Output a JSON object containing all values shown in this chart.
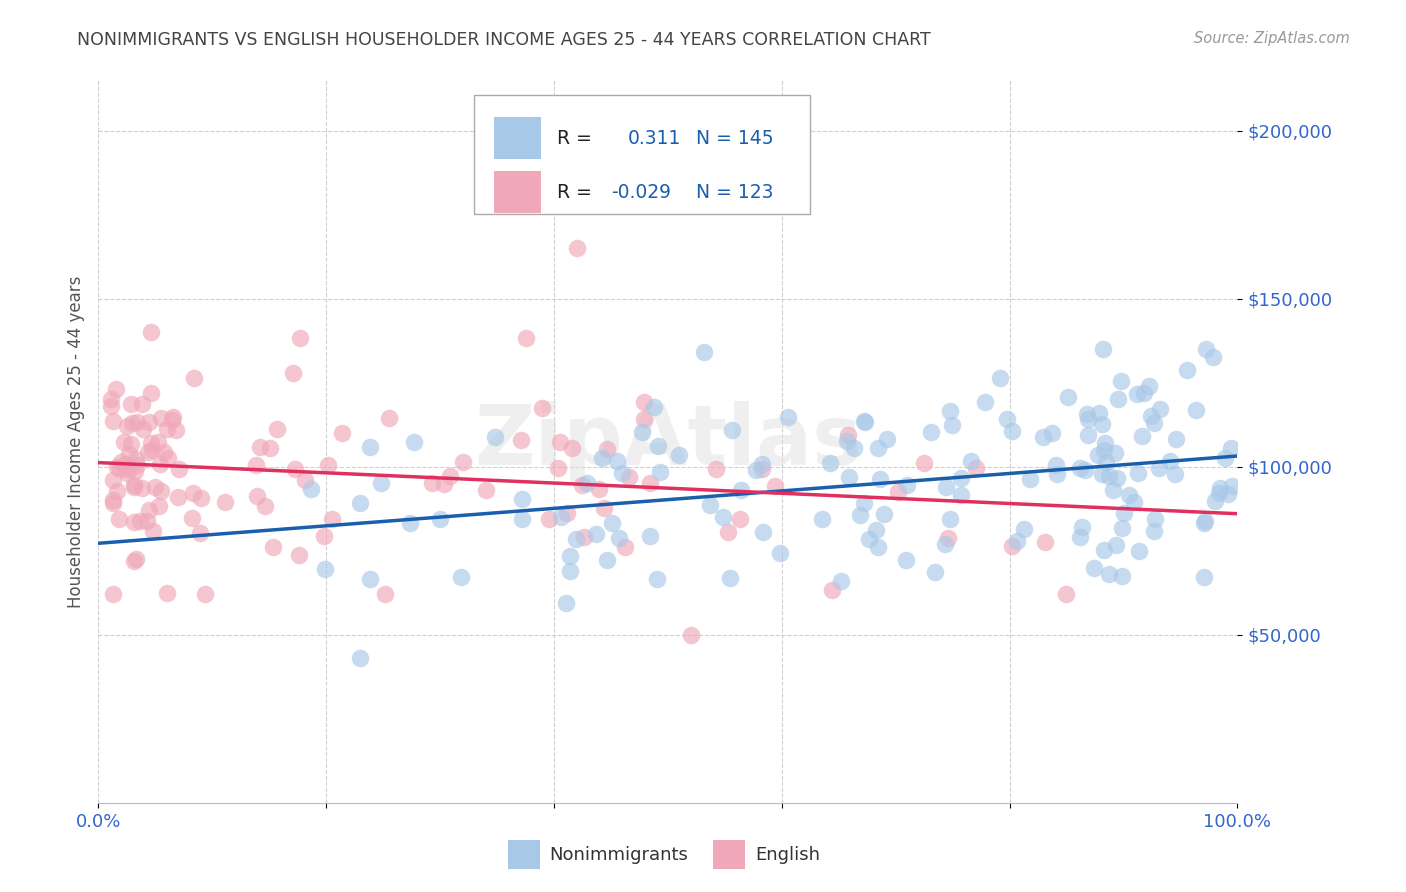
{
  "title": "NONIMMIGRANTS VS ENGLISH HOUSEHOLDER INCOME AGES 25 - 44 YEARS CORRELATION CHART",
  "source": "Source: ZipAtlas.com",
  "ylabel": "Householder Income Ages 25 - 44 years",
  "ytick_labels": [
    "$50,000",
    "$100,000",
    "$150,000",
    "$200,000"
  ],
  "ytick_values": [
    50000,
    100000,
    150000,
    200000
  ],
  "ylim": [
    0,
    215000
  ],
  "xlim": [
    0.0,
    1.0
  ],
  "blue_label": "Nonimmigrants",
  "pink_label": "English",
  "blue_R": 0.311,
  "blue_N": 145,
  "pink_R": -0.029,
  "pink_N": 123,
  "blue_color": "#A8C8E8",
  "pink_color": "#F0A8B8",
  "blue_line_color": "#1A5FAB",
  "pink_line_color": "#E03060",
  "watermark": "ZipAtlas",
  "background_color": "#FFFFFF",
  "grid_color": "#BBBBBB",
  "title_color": "#444444",
  "tick_color": "#3366CC",
  "legend_text_color": "#222222",
  "legend_val_color": "#1A5FAB"
}
